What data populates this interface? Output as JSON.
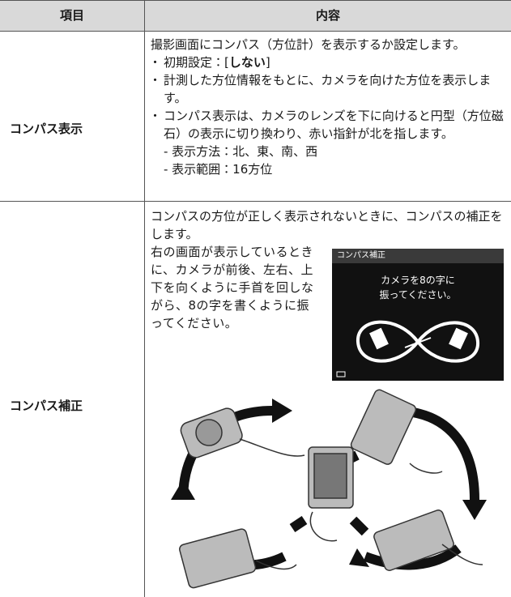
{
  "table": {
    "header": [
      "項目",
      "内容"
    ],
    "rows": [
      {
        "item": "コンパス表示",
        "intro": "撮影画面にコンパス（方位計）を表示するか設定します。",
        "default": {
          "label": "初期設定：[",
          "value": "しない",
          "close": "]"
        },
        "bullets": [
          "計測した方位情報をもとに、カメラを向けた方位を表示します。",
          "コンパス表示は、カメラのレンズを下に向けると円型（方位磁石）の表示に切り換わり、赤い指針が北を指します。"
        ],
        "sub": [
          "- 表示方法：北、東、南、西",
          "- 表示範囲：16方位"
        ]
      },
      {
        "item": "コンパス補正",
        "intro": "コンパスの方位が正しく表示されないときに、コンパスの補正をします。",
        "instruction": "右の画面が表示しているときに、カメラが前後、左右、上下を向くように手首を回しながら、8の字を書くように振ってください。",
        "screen": {
          "title": "コンパス補正",
          "message": [
            "カメラを8の字に",
            "振ってください。"
          ]
        }
      }
    ]
  }
}
